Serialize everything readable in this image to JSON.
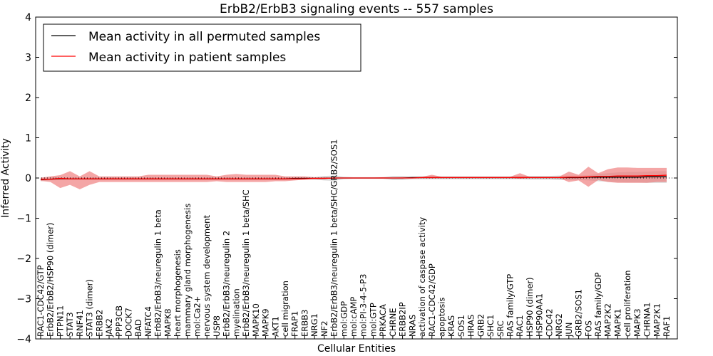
{
  "chart_data": {
    "type": "line",
    "title": "ErbB2/ErbB3 signaling events -- 557 samples",
    "xlabel": "Cellular Entities",
    "ylabel": "Inferred Activity",
    "ylim": [
      -4,
      4
    ],
    "yticks": [
      "−4",
      "−3",
      "−2",
      "−1",
      "0",
      "1",
      "2",
      "3",
      "4"
    ],
    "grid": false,
    "legend_position": "top-left",
    "categories": [
      "RAC1-CDC42/GTP",
      "ErbB2/ErbB2/HSP90 (dimer)",
      "PTPN11",
      "STAT3",
      "RNF41",
      "STAT3 (dimer)",
      "ERBB2",
      "JAK2",
      "PPP3CB",
      "DOCK7",
      "BAD",
      "NFATC4",
      "ErbB2/ErbB3/neuregulin 1 beta",
      "MAPK8",
      "heart morphogenesis",
      "mammary gland morphogenesis",
      "mol:Ca2+",
      "nervous system development",
      "USP8",
      "ErbB2/ErbB3/neuregulin 2",
      "myelination",
      "ErbB2/ErbB3/neuregulin 1 beta/SHC",
      "MAPK10",
      "MAPK9",
      "AKT1",
      "cell migration",
      "FRAP1",
      "ERBB3",
      "NRG1",
      "NF2",
      "ErbB2/ErbB3/neuregulin 1 beta/SHC/GRB2/SOS1",
      "mol:GDP",
      "mol:cAMP",
      "mol:PI-3-4-5-P3",
      "mol:GTP",
      "PRKACA",
      "CHRNE",
      "ERBB2IP",
      "NRAS",
      "activation of caspase activity",
      "RAC1-CDC42/GDP",
      "apoptosis",
      "KRAS",
      "SOS1",
      "HRAS",
      "GRB2",
      "SHC1",
      "SRC",
      "RAS family/GTP",
      "RAC1",
      "HSP90 (dimer)",
      "HSP90AA1",
      "CDC42",
      "NRG2",
      "JUN",
      "GRB2/SOS1",
      "FOS",
      "RAS family/GDP",
      "MAP2K2",
      "MAPK1",
      "cell proliferation",
      "MAPK3",
      "CHRNA1",
      "MAP2K1",
      "RAF1"
    ],
    "series": [
      {
        "name": "Mean activity in all permuted samples",
        "color": "#000000",
        "values": [
          -0.04,
          -0.03,
          -0.02,
          -0.02,
          -0.02,
          -0.02,
          -0.02,
          -0.02,
          -0.02,
          -0.02,
          -0.02,
          -0.02,
          -0.02,
          -0.02,
          -0.02,
          -0.02,
          -0.02,
          -0.02,
          -0.02,
          -0.02,
          -0.02,
          -0.02,
          -0.02,
          -0.02,
          -0.02,
          -0.02,
          -0.01,
          -0.01,
          -0.01,
          -0.01,
          0,
          0,
          0,
          0,
          0,
          0,
          0,
          0,
          0.01,
          0.01,
          0.01,
          0.01,
          0.01,
          0.01,
          0.01,
          0.01,
          0.01,
          0.01,
          0.01,
          0.01,
          0.01,
          0.01,
          0.01,
          0.01,
          0.01,
          0.01,
          0.02,
          0.02,
          0.02,
          0.02,
          0.02,
          0.02,
          0.03,
          0.03,
          0.03
        ],
        "band_upper": [
          0.01,
          0.02,
          0.02,
          0.02,
          0.02,
          0.02,
          0.02,
          0.02,
          0.02,
          0.02,
          0.02,
          0.02,
          0.02,
          0.02,
          0.02,
          0.02,
          0.02,
          0.02,
          0.02,
          0.02,
          0.02,
          0.02,
          0.02,
          0.02,
          0.02,
          0.02,
          0.02,
          0.02,
          0.02,
          0.05,
          0.06,
          0.03,
          0.02,
          0.02,
          0.02,
          0.02,
          0.05,
          0.05,
          0.04,
          0.04,
          0.04,
          0.04,
          0.04,
          0.04,
          0.04,
          0.04,
          0.04,
          0.04,
          0.04,
          0.04,
          0.05,
          0.05,
          0.05,
          0.06,
          0.06,
          0.06,
          0.07,
          0.1,
          0.12,
          0.14,
          0.15,
          0.15,
          0.16,
          0.17,
          0.17
        ],
        "band_lower": [
          -0.08,
          -0.06,
          -0.05,
          -0.05,
          -0.05,
          -0.05,
          -0.05,
          -0.05,
          -0.05,
          -0.05,
          -0.05,
          -0.05,
          -0.05,
          -0.05,
          -0.05,
          -0.05,
          -0.05,
          -0.05,
          -0.05,
          -0.05,
          -0.05,
          -0.05,
          -0.05,
          -0.05,
          -0.05,
          -0.05,
          -0.04,
          -0.04,
          -0.04,
          -0.06,
          -0.07,
          -0.03,
          -0.02,
          -0.02,
          -0.02,
          -0.02,
          -0.05,
          -0.05,
          -0.03,
          -0.03,
          -0.03,
          -0.03,
          -0.03,
          -0.03,
          -0.03,
          -0.03,
          -0.03,
          -0.03,
          -0.03,
          -0.03,
          -0.04,
          -0.04,
          -0.04,
          -0.05,
          -0.05,
          -0.05,
          -0.06,
          -0.08,
          -0.09,
          -0.1,
          -0.11,
          -0.11,
          -0.12,
          -0.12,
          -0.12
        ]
      },
      {
        "name": "Mean activity in patient samples",
        "color": "#ff0000",
        "values": [
          -0.03,
          -0.03,
          -0.01,
          -0.02,
          -0.02,
          -0.02,
          -0.02,
          -0.02,
          -0.02,
          -0.02,
          -0.02,
          -0.02,
          -0.02,
          -0.02,
          -0.02,
          -0.02,
          -0.02,
          -0.02,
          -0.02,
          -0.02,
          -0.02,
          -0.02,
          -0.02,
          -0.02,
          -0.02,
          -0.02,
          -0.02,
          -0.02,
          -0.01,
          -0.01,
          0,
          0,
          0,
          0,
          0,
          0,
          0,
          0,
          0,
          0.01,
          0.01,
          0.01,
          0.01,
          0.01,
          0.01,
          0.01,
          0.01,
          0.01,
          0.01,
          0.01,
          0.01,
          0.01,
          0.01,
          0.01,
          0.02,
          0.02,
          0.03,
          0.04,
          0.04,
          0.05,
          0.05,
          0.05,
          0.06,
          0.06,
          0.07
        ],
        "band_upper": [
          0.01,
          0.04,
          0.07,
          0.17,
          0.04,
          0.17,
          0.04,
          0.04,
          0.04,
          0.04,
          0.04,
          0.08,
          0.08,
          0.08,
          0.08,
          0.08,
          0.08,
          0.08,
          0.04,
          0.08,
          0.1,
          0.08,
          0.08,
          0.08,
          0.08,
          0.04,
          0.04,
          0.04,
          0.02,
          0.02,
          0.01,
          0.01,
          0.01,
          0.01,
          0.01,
          0.02,
          0.01,
          0.02,
          0.02,
          0.03,
          0.08,
          0.03,
          0.03,
          0.03,
          0.03,
          0.03,
          0.03,
          0.03,
          0.03,
          0.12,
          0.03,
          0.03,
          0.03,
          0.03,
          0.16,
          0.08,
          0.28,
          0.12,
          0.22,
          0.26,
          0.26,
          0.25,
          0.25,
          0.25,
          0.25
        ],
        "band_lower": [
          -0.07,
          -0.1,
          -0.25,
          -0.17,
          -0.28,
          -0.17,
          -0.1,
          -0.1,
          -0.1,
          -0.1,
          -0.1,
          -0.1,
          -0.1,
          -0.1,
          -0.1,
          -0.1,
          -0.1,
          -0.1,
          -0.08,
          -0.1,
          -0.1,
          -0.1,
          -0.1,
          -0.1,
          -0.08,
          -0.08,
          -0.06,
          -0.04,
          -0.02,
          -0.02,
          -0.01,
          -0.01,
          -0.01,
          -0.01,
          -0.01,
          -0.01,
          -0.01,
          0,
          0,
          0,
          -0.01,
          0,
          0,
          0,
          0,
          0,
          0,
          0,
          0,
          -0.02,
          0,
          0,
          0,
          0,
          -0.1,
          -0.06,
          -0.22,
          -0.05,
          -0.1,
          -0.12,
          -0.12,
          -0.12,
          -0.12,
          -0.1,
          -0.1
        ]
      }
    ]
  },
  "colors": {
    "permuted_band": "#c8c8c8",
    "patient_band": "#f08080",
    "reference_line": "#000000"
  }
}
